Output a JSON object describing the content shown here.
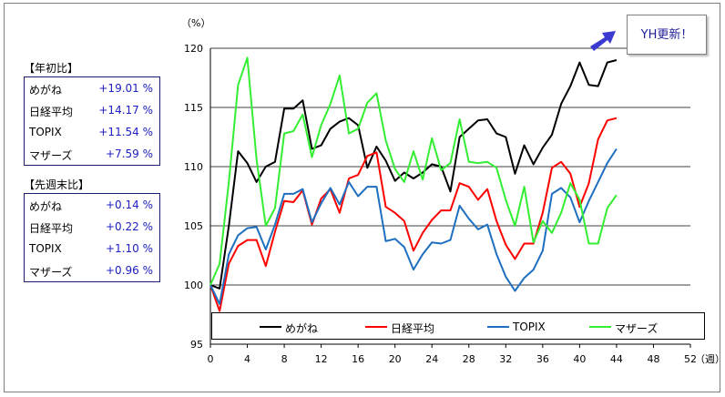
{
  "panel_ytd": {
    "title": "【年初比】",
    "rows": [
      {
        "name": "めがね",
        "value": "+19.01 %"
      },
      {
        "name": "日経平均",
        "value": "+14.17 %"
      },
      {
        "name": "TOPIX",
        "value": "+11.54 %"
      },
      {
        "name": "マザーズ",
        "value": "+7.59 %"
      }
    ]
  },
  "panel_wow": {
    "title": "【先週末比】",
    "rows": [
      {
        "name": "めがね",
        "value": "+0.14 %"
      },
      {
        "name": "日経平均",
        "value": "+0.22 %"
      },
      {
        "name": "TOPIX",
        "value": "+1.10 %"
      },
      {
        "name": "マザーズ",
        "value": "+0.96 %"
      }
    ]
  },
  "callout": {
    "label": "YH更新！",
    "arrow_color": "#3a3ad0"
  },
  "chart_data": {
    "type": "line",
    "y_unit_label": "（%）",
    "x_unit_label": "（週）",
    "ylim": [
      95,
      120
    ],
    "xlim": [
      0,
      52
    ],
    "y_ticks": [
      95,
      100,
      105,
      110,
      115,
      120
    ],
    "x_ticks": [
      0,
      4,
      8,
      12,
      16,
      20,
      24,
      28,
      32,
      36,
      40,
      44,
      48,
      52
    ],
    "grid": "horizontal",
    "legend_placement": "bottom",
    "series": [
      {
        "name": "めがね",
        "color": "#000000",
        "values": [
          100,
          99.7,
          105.0,
          111.3,
          110.3,
          108.7,
          110.0,
          110.4,
          114.9,
          114.9,
          115.6,
          111.5,
          111.8,
          113.2,
          113.8,
          114.1,
          113.5,
          109.9,
          111.7,
          110.5,
          108.8,
          109.5,
          109.0,
          109.5,
          110.2,
          110.0,
          107.9,
          112.5,
          113.2,
          113.9,
          114.0,
          112.8,
          112.5,
          109.4,
          111.8,
          110.2,
          111.6,
          112.7,
          115.3,
          116.8,
          118.8,
          116.9,
          116.8,
          118.8,
          119.0
        ]
      },
      {
        "name": "日経平均",
        "color": "#ff0000",
        "values": [
          100,
          97.8,
          101.8,
          103.3,
          103.8,
          103.8,
          101.6,
          104.5,
          107.1,
          107.0,
          108.0,
          105.1,
          107.3,
          108.1,
          106.1,
          109.0,
          109.3,
          110.9,
          111.2,
          106.6,
          106.1,
          105.4,
          102.9,
          104.4,
          105.5,
          106.3,
          106.3,
          108.6,
          108.3,
          107.2,
          108.1,
          105.4,
          103.4,
          102.2,
          103.5,
          103.5,
          106.1,
          109.9,
          110.4,
          109.4,
          106.6,
          108.6,
          112.3,
          113.9,
          114.1
        ]
      },
      {
        "name": "TOPIX",
        "color": "#1f6fc0",
        "values": [
          100,
          98.4,
          102.6,
          104.2,
          104.8,
          104.9,
          103.0,
          105.1,
          107.7,
          107.7,
          108.1,
          105.3,
          106.9,
          108.2,
          106.8,
          108.7,
          107.5,
          108.3,
          108.3,
          103.7,
          103.9,
          103.2,
          101.3,
          102.6,
          103.6,
          103.5,
          103.8,
          106.7,
          105.6,
          104.7,
          105.1,
          102.6,
          100.7,
          99.5,
          100.6,
          101.3,
          102.9,
          107.7,
          108.2,
          107.4,
          105.3,
          107.1,
          108.7,
          110.3,
          111.5
        ]
      },
      {
        "name": "マザーズ",
        "color": "#33ee33",
        "values": [
          100,
          101.8,
          108.7,
          116.9,
          119.2,
          110.6,
          105.0,
          106.5,
          112.8,
          113.0,
          114.4,
          110.8,
          113.5,
          115.3,
          117.7,
          112.8,
          113.2,
          115.4,
          116.2,
          112.2,
          109.8,
          108.7,
          111.3,
          108.9,
          112.4,
          109.7,
          110.3,
          114.0,
          110.4,
          110.3,
          110.4,
          109.9,
          107.2,
          105.0,
          108.3,
          103.6,
          105.4,
          104.4,
          106.1,
          108.6,
          107.2,
          103.5,
          103.5,
          106.5,
          107.6
        ]
      }
    ]
  }
}
